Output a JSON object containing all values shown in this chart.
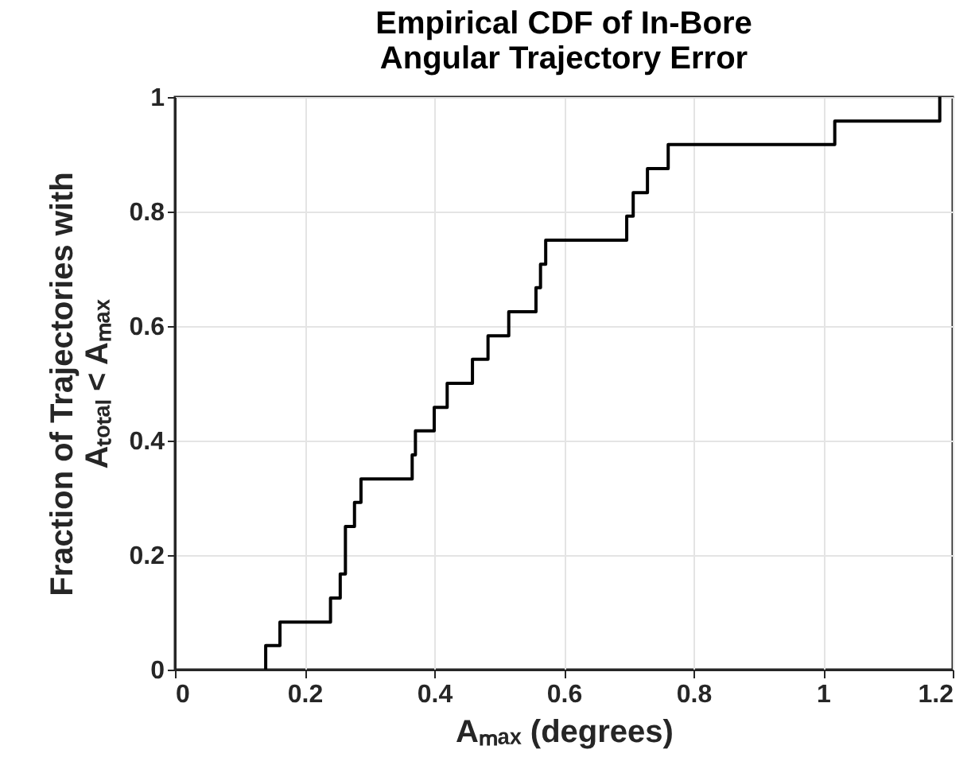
{
  "chart_data": {
    "type": "step",
    "title": "Empirical CDF of In-Bore\nAngular Trajectory Error",
    "xlabel": "Aₘₐₓ (degrees)",
    "ylabel": "Fraction of Trajectories with\nAₜₒₜₐₗ < Aₘₐₓ",
    "x": [
      0.14,
      0.14,
      0.162,
      0.24,
      0.255,
      0.263,
      0.277,
      0.287,
      0.366,
      0.371,
      0.4,
      0.42,
      0.459,
      0.483,
      0.515,
      0.557,
      0.564,
      0.572,
      0.697,
      0.707,
      0.729,
      0.761,
      1.018,
      1.18
    ],
    "series": [
      {
        "color": "#000000",
        "values": [
          0,
          0.042,
          0.083,
          0.125,
          0.167,
          0.25,
          0.292,
          0.333,
          0.375,
          0.417,
          0.458,
          0.5,
          0.542,
          0.583,
          0.625,
          0.667,
          0.708,
          0.75,
          0.792,
          0.833,
          0.875,
          0.917,
          0.958,
          1
        ]
      }
    ],
    "xlim": [
      0,
      1.2
    ],
    "xticks": [
      0,
      0.2,
      0.4,
      0.6,
      0.8,
      1,
      1.2
    ],
    "ylim": [
      0,
      1
    ],
    "yticks": [
      0,
      0.2,
      0.4,
      0.6,
      0.8,
      1
    ],
    "grid": true,
    "marker": "none",
    "line_style": "solid"
  }
}
